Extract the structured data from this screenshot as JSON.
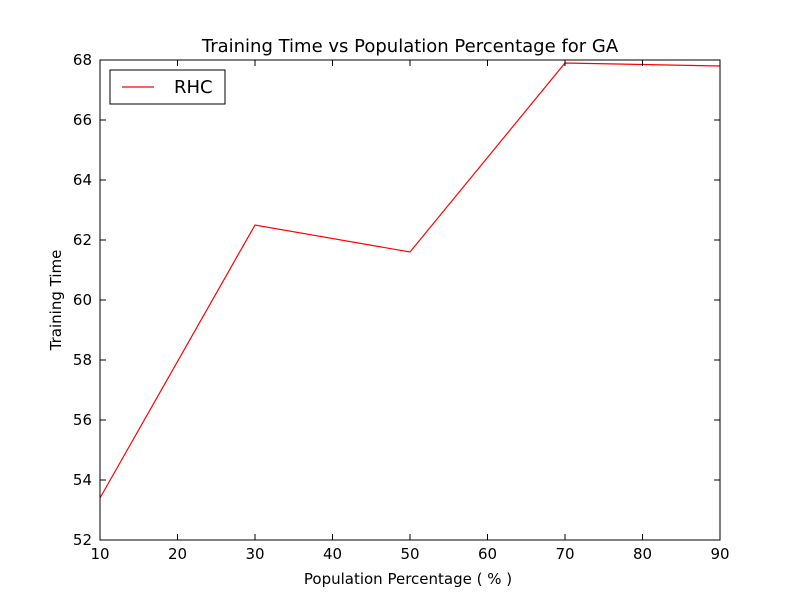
{
  "chart_data": {
    "type": "line",
    "title": "Training Time vs Population Percentage for GA",
    "xlabel": "Population Percentage ( % )",
    "ylabel": "Training Time",
    "xlim": [
      10,
      90
    ],
    "ylim": [
      52,
      68
    ],
    "x_ticks": [
      "10",
      "20",
      "30",
      "40",
      "50",
      "60",
      "70",
      "80",
      "90"
    ],
    "y_ticks": [
      "52",
      "54",
      "56",
      "58",
      "60",
      "62",
      "64",
      "66",
      "68"
    ],
    "grid": false,
    "legend_position": "top-left",
    "series": [
      {
        "name": "RHC",
        "color": "#ff0000",
        "x": [
          10,
          30,
          50,
          70,
          90
        ],
        "y": [
          53.4,
          62.5,
          61.6,
          67.9,
          67.8
        ]
      }
    ]
  }
}
